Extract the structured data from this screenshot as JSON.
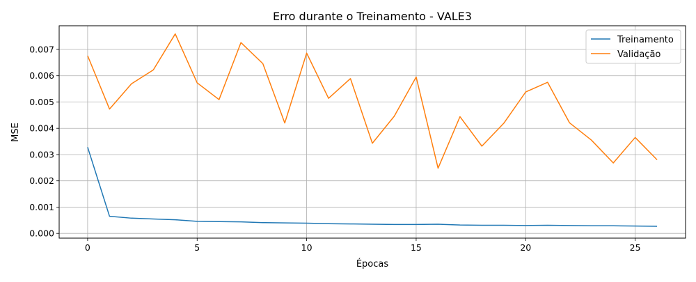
{
  "chart_data": {
    "type": "line",
    "title": "Erro durante o Treinamento - VALE3",
    "xlabel": "Épocas",
    "ylabel": "MSE",
    "x": [
      0,
      1,
      2,
      3,
      4,
      5,
      6,
      7,
      8,
      9,
      10,
      11,
      12,
      13,
      14,
      15,
      16,
      17,
      18,
      19,
      20,
      21,
      22,
      23,
      24,
      25,
      26
    ],
    "xlim": [
      -1.3,
      27.3
    ],
    "ylim": [
      -0.00018,
      0.0079
    ],
    "x_ticks": [
      0,
      5,
      10,
      15,
      20,
      25
    ],
    "x_tick_labels": [
      "0",
      "5",
      "10",
      "15",
      "20",
      "25"
    ],
    "y_ticks": [
      0,
      0.001,
      0.002,
      0.003,
      0.004,
      0.005,
      0.006,
      0.007
    ],
    "y_tick_labels": [
      "0.000",
      "0.001",
      "0.002",
      "0.003",
      "0.004",
      "0.005",
      "0.006",
      "0.007"
    ],
    "grid": true,
    "legend_position": "top-right",
    "series": [
      {
        "name": "Treinamento",
        "color": "#1f77b4",
        "values": [
          0.00328,
          0.00065,
          0.00058,
          0.00055,
          0.00052,
          0.00046,
          0.00045,
          0.00044,
          0.00041,
          0.0004,
          0.00039,
          0.00037,
          0.00036,
          0.00035,
          0.00034,
          0.00034,
          0.00035,
          0.00032,
          0.00031,
          0.00031,
          0.0003,
          0.00031,
          0.0003,
          0.00029,
          0.00029,
          0.00028,
          0.00027
        ]
      },
      {
        "name": "Validação",
        "color": "#ff7f0e",
        "values": [
          0.00676,
          0.00473,
          0.00569,
          0.00622,
          0.00759,
          0.00573,
          0.00509,
          0.00726,
          0.00646,
          0.0042,
          0.00686,
          0.00514,
          0.00589,
          0.00343,
          0.00446,
          0.00595,
          0.00248,
          0.00444,
          0.00332,
          0.00419,
          0.00538,
          0.00575,
          0.00421,
          0.00355,
          0.00268,
          0.00365,
          0.0028
        ]
      }
    ]
  }
}
